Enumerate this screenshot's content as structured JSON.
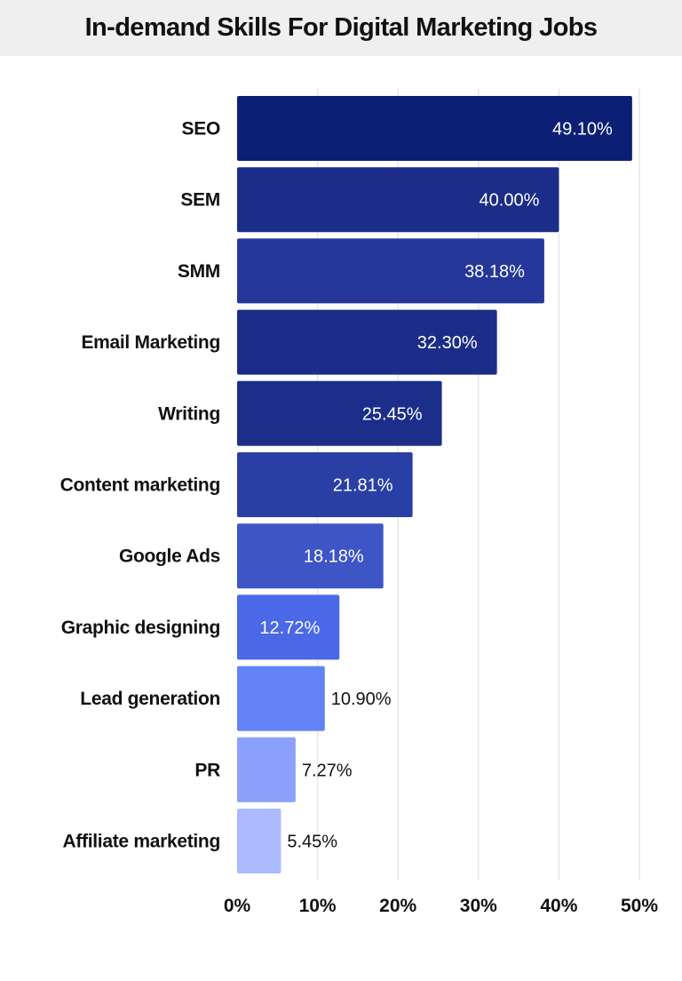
{
  "chart_data": {
    "type": "bar",
    "orientation": "horizontal",
    "title": "In-demand Skills For Digital Marketing Jobs",
    "categories": [
      "SEO",
      "SEM",
      "SMM",
      "Email Marketing",
      "Writing",
      "Content marketing",
      "Google Ads",
      "Graphic designing",
      "Lead generation",
      "PR",
      "Affiliate marketing"
    ],
    "values": [
      49.1,
      40.0,
      38.18,
      32.3,
      25.45,
      21.81,
      18.18,
      12.72,
      10.9,
      7.27,
      5.45
    ],
    "value_labels": [
      "49.10%",
      "40.00%",
      "38.18%",
      "32.30%",
      "25.45%",
      "21.81%",
      "18.18%",
      "12.72%",
      "10.90%",
      "7.27%",
      "5.45%"
    ],
    "colors": [
      "#0b1f75",
      "#1b2d88",
      "#25389a",
      "#1b2d88",
      "#1c2e8a",
      "#2a3fa6",
      "#3e55c6",
      "#4a68e8",
      "#6282f6",
      "#8aa0fb",
      "#abbbfd"
    ],
    "xlim": [
      0,
      50
    ],
    "xticks": [
      0,
      10,
      20,
      30,
      40,
      50
    ],
    "xtick_labels": [
      "0%",
      "10%",
      "20%",
      "30%",
      "40%",
      "50%"
    ],
    "xlabel": "",
    "ylabel": "",
    "grid": "vertical",
    "legend": "none"
  }
}
